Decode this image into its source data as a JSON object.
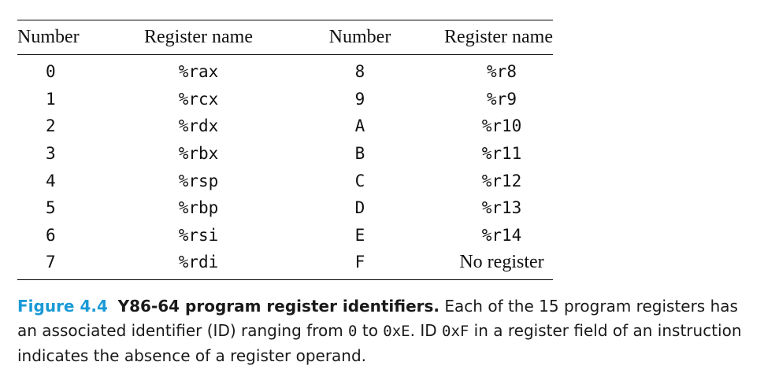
{
  "table": {
    "headers": [
      "Number",
      "Register name",
      "Number",
      "Register name"
    ],
    "rows": [
      [
        "0",
        "%rax",
        "8",
        "%r8"
      ],
      [
        "1",
        "%rcx",
        "9",
        "%r9"
      ],
      [
        "2",
        "%rdx",
        "A",
        "%r10"
      ],
      [
        "3",
        "%rbx",
        "B",
        "%r11"
      ],
      [
        "4",
        "%rsp",
        "C",
        "%r12"
      ],
      [
        "5",
        "%rbp",
        "D",
        "%r13"
      ],
      [
        "6",
        "%rsi",
        "E",
        "%r14"
      ],
      [
        "7",
        "%rdi",
        "F",
        "No register"
      ]
    ]
  },
  "caption": {
    "label": "Figure 4.4",
    "title": "Y86-64 program register identifiers.",
    "text_1": "Each of the 15 program registers has an associated identifier (ID) ranging from ",
    "code_1": "0",
    "text_2": " to ",
    "code_2": "0xE",
    "text_3": ". ID ",
    "code_3": "0xF",
    "text_4": " in a register field of an instruction indicates the absence of a register operand."
  },
  "colors": {
    "figure_label": "#1a9ad6",
    "text": "#1a1a1a"
  }
}
